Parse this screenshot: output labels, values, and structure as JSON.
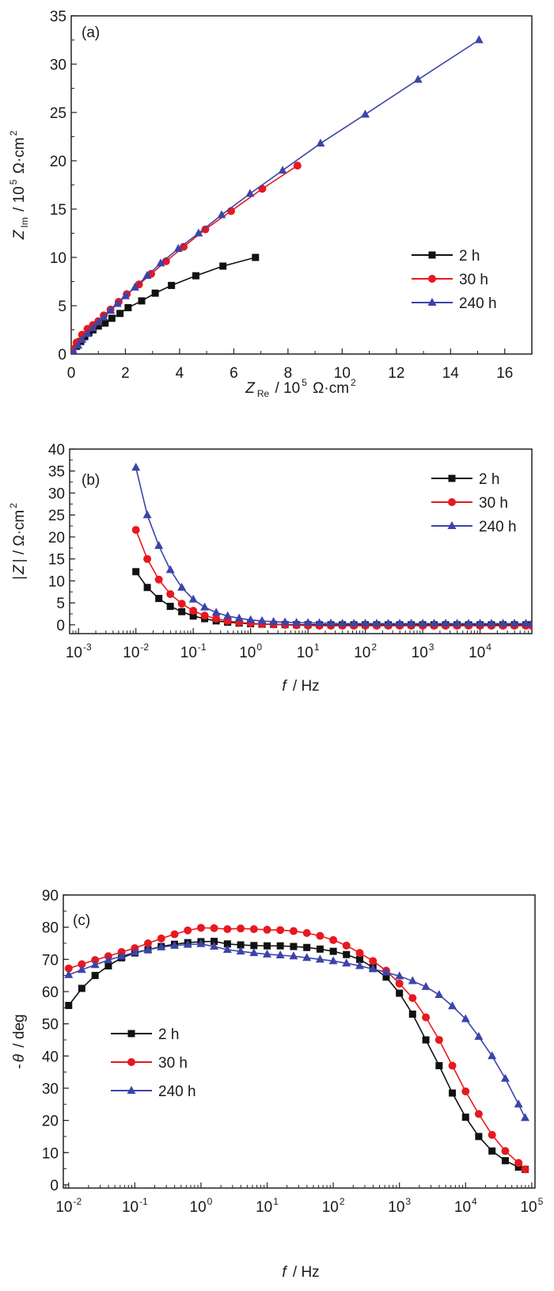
{
  "colors": {
    "2 h": "#111111",
    "30 h": "#e8181e",
    "240 h": "#3b45a8"
  },
  "chart_data": [
    {
      "type": "scatter",
      "panel_label": "(a)",
      "xlabel": {
        "main": "Z",
        "sub": "Re",
        "rest": " / 10",
        "sup": "5",
        "unit": " Ω·cm",
        "unit_sup": "2"
      },
      "ylabel": {
        "main": "Z",
        "sub": "Im",
        "rest": " / 10",
        "sup": "5",
        "unit": " Ω·cm",
        "unit_sup": "2"
      },
      "xlim": [
        0,
        17
      ],
      "ylim": [
        0,
        35
      ],
      "xticks": [
        "0",
        "2",
        "4",
        "6",
        "8",
        "10",
        "12",
        "14",
        "16"
      ],
      "yticks": [
        "0",
        "5",
        "10",
        "15",
        "20",
        "25",
        "30",
        "35"
      ],
      "legend_position": "bottom-right",
      "series": [
        {
          "name": "2 h",
          "marker": "square",
          "x": [
            0.05,
            0.2,
            0.35,
            0.5,
            0.65,
            0.8,
            1,
            1.25,
            1.5,
            1.8,
            2.1,
            2.6,
            3.1,
            3.7,
            4.6,
            5.6,
            6.8
          ],
          "y": [
            0.3,
            0.8,
            1.3,
            1.8,
            2.2,
            2.5,
            2.9,
            3.2,
            3.7,
            4.2,
            4.8,
            5.5,
            6.3,
            7.1,
            8.1,
            9.1,
            10
          ]
        },
        {
          "name": "30 h",
          "marker": "circle",
          "x": [
            0.05,
            0.2,
            0.4,
            0.6,
            0.8,
            1,
            1.2,
            1.45,
            1.75,
            2.05,
            2.5,
            2.95,
            3.5,
            4.15,
            4.95,
            5.9,
            7.05,
            8.35
          ],
          "y": [
            0.5,
            1.2,
            2,
            2.6,
            3,
            3.4,
            4,
            4.6,
            5.4,
            6.2,
            7.2,
            8.3,
            9.6,
            11.1,
            12.9,
            14.8,
            17.1,
            19.5
          ]
        },
        {
          "name": "240 h",
          "marker": "triangle",
          "x": [
            0.1,
            0.25,
            0.4,
            0.6,
            0.8,
            1,
            1.2,
            1.45,
            1.7,
            2,
            2.35,
            2.8,
            3.3,
            3.95,
            4.7,
            5.55,
            6.6,
            7.8,
            9.2,
            10.85,
            12.8,
            15.05
          ],
          "y": [
            0.2,
            0.9,
            1.5,
            2.1,
            2.7,
            3.3,
            3.8,
            4.5,
            5.2,
            6,
            6.9,
            8.1,
            9.4,
            10.9,
            12.5,
            14.4,
            16.6,
            19,
            21.8,
            24.8,
            28.4,
            32.5
          ]
        }
      ]
    },
    {
      "type": "line",
      "panel_label": "(b)",
      "xscale": "log",
      "xlabel": {
        "main": "f",
        "rest": " / Hz"
      },
      "ylabel": {
        "main": "Z",
        "pre": "|",
        "rest": "| / Ω·cm",
        "sup": "2"
      },
      "xlim": [
        0.0007,
        80000
      ],
      "ylim": [
        -2,
        40
      ],
      "xticks": [
        {
          "b": "10",
          "e": "-3"
        },
        {
          "b": "10",
          "e": "-2"
        },
        {
          "b": "10",
          "e": "-1"
        },
        {
          "b": "10",
          "e": "0"
        },
        {
          "b": "10",
          "e": "1"
        },
        {
          "b": "10",
          "e": "2"
        },
        {
          "b": "10",
          "e": "3"
        },
        {
          "b": "10",
          "e": "4"
        }
      ],
      "yticks": [
        "0",
        "5",
        "10",
        "15",
        "20",
        "25",
        "30",
        "35",
        "40"
      ],
      "legend_position": "top-right",
      "x": [
        0.01,
        0.0158,
        0.0251,
        0.0398,
        0.0631,
        0.1,
        0.158,
        0.251,
        0.398,
        0.631,
        1,
        1.58,
        2.51,
        3.98,
        6.31,
        10,
        15.8,
        25.1,
        39.8,
        63.1,
        100,
        158,
        251,
        398,
        631,
        1000,
        1580,
        2510,
        3980,
        6310,
        10000,
        15800,
        25100,
        39800,
        63100,
        79400
      ],
      "series": [
        {
          "name": "2 h",
          "marker": "square",
          "y": [
            12.1,
            8.5,
            6,
            4.2,
            3,
            2,
            1.4,
            0.9,
            0.6,
            0.4,
            0.25,
            0.15,
            0.1,
            0.05,
            0.03,
            0.02,
            0.01,
            0,
            0,
            0,
            0,
            0,
            0,
            0,
            0,
            0,
            0,
            0,
            0,
            0,
            0,
            0,
            0,
            0,
            0,
            0
          ]
        },
        {
          "name": "30 h",
          "marker": "circle",
          "y": [
            21.6,
            15,
            10.3,
            7,
            4.8,
            3.2,
            2.1,
            1.4,
            0.9,
            0.55,
            0.35,
            0.2,
            0.1,
            0,
            -0.1,
            -0.15,
            -0.2,
            -0.2,
            -0.2,
            -0.2,
            -0.2,
            -0.2,
            -0.2,
            -0.2,
            -0.2,
            -0.2,
            -0.2,
            -0.2,
            -0.2,
            -0.2,
            -0.2,
            -0.2,
            -0.2,
            -0.2,
            -0.2,
            -0.2
          ]
        },
        {
          "name": "240 h",
          "marker": "triangle",
          "y": [
            35.8,
            25,
            18,
            12.5,
            8.5,
            5.8,
            4,
            2.8,
            2,
            1.5,
            1.1,
            0.9,
            0.7,
            0.6,
            0.5,
            0.45,
            0.4,
            0.35,
            0.3,
            0.3,
            0.3,
            0.3,
            0.3,
            0.3,
            0.3,
            0.3,
            0.3,
            0.3,
            0.3,
            0.3,
            0.3,
            0.3,
            0.3,
            0.3,
            0.3,
            0.3
          ]
        }
      ]
    },
    {
      "type": "line",
      "panel_label": "(c)",
      "xscale": "log",
      "xlabel": {
        "main": "f",
        "rest": " / Hz"
      },
      "ylabel": {
        "pre": "-",
        "main": "θ",
        "rest": " / deg"
      },
      "xlim": [
        0.0083,
        112000
      ],
      "ylim": [
        -1,
        90
      ],
      "xticks": [
        {
          "b": "10",
          "e": "-2"
        },
        {
          "b": "10",
          "e": "-1"
        },
        {
          "b": "10",
          "e": "0"
        },
        {
          "b": "10",
          "e": "1"
        },
        {
          "b": "10",
          "e": "2"
        },
        {
          "b": "10",
          "e": "3"
        },
        {
          "b": "10",
          "e": "4"
        },
        {
          "b": "10",
          "e": "5"
        }
      ],
      "yticks": [
        "0",
        "10",
        "20",
        "30",
        "40",
        "50",
        "60",
        "70",
        "80",
        "90"
      ],
      "legend_position": "bottom-left",
      "x": [
        0.01,
        0.0158,
        0.0251,
        0.0398,
        0.0631,
        0.1,
        0.158,
        0.251,
        0.398,
        0.631,
        1,
        1.58,
        2.51,
        3.98,
        6.31,
        10,
        15.8,
        25.1,
        39.8,
        63.1,
        100,
        158,
        251,
        398,
        631,
        1000,
        1580,
        2510,
        3980,
        6310,
        10000,
        15800,
        25100,
        39800,
        63100,
        79400
      ],
      "series": [
        {
          "name": "2 h",
          "marker": "square",
          "y": [
            55.7,
            61,
            65,
            68,
            70.5,
            72,
            73,
            74,
            74.7,
            75.2,
            75.5,
            75.6,
            74.8,
            74.5,
            74.3,
            74.2,
            74.2,
            74,
            73.7,
            73.2,
            72.5,
            71.5,
            70,
            67.5,
            64.5,
            59.5,
            53,
            45,
            37,
            28.5,
            21,
            15,
            10.5,
            7.5,
            5.5,
            4.8
          ]
        },
        {
          "name": "30 h",
          "marker": "circle",
          "y": [
            67.2,
            68.5,
            69.8,
            71,
            72.3,
            73.5,
            75,
            76.5,
            77.8,
            79,
            79.8,
            79.7,
            79.4,
            79.6,
            79.4,
            79.2,
            79.1,
            78.8,
            78.2,
            77.3,
            76,
            74.3,
            72,
            69.5,
            66.5,
            62.5,
            58,
            52,
            45,
            37,
            29,
            22,
            15.5,
            10.5,
            6.8,
            4.8
          ]
        },
        {
          "name": "240 h",
          "marker": "triangle",
          "y": [
            65.2,
            66.8,
            68.3,
            69.8,
            71,
            72.2,
            73,
            73.8,
            74.3,
            74.6,
            74.8,
            74,
            73,
            72.5,
            72,
            71.6,
            71.3,
            71,
            70.5,
            70,
            69.5,
            68.8,
            68,
            67,
            66,
            64.8,
            63.3,
            61.5,
            59,
            55.5,
            51.5,
            46,
            40,
            33,
            25,
            20.8
          ]
        }
      ]
    }
  ]
}
